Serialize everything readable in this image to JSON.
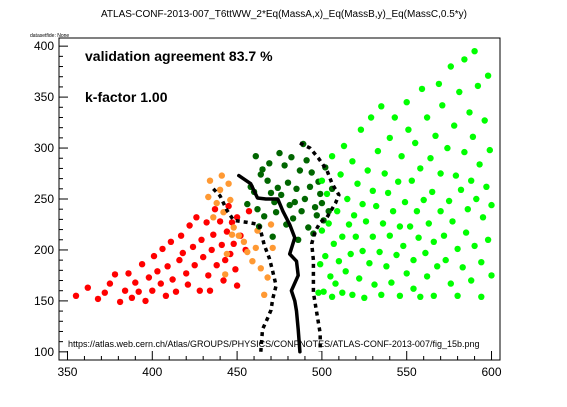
{
  "chart_data": {
    "type": "scatter",
    "title": "ATLAS-CONF-2013-007_T6ttWW_2*Eq(MassA,x)_Eq(MassB,y)_Eq(MassC,0.5*y)",
    "subtitle": "datasetfide: None",
    "xlabel": "",
    "ylabel": "",
    "xlim": [
      345,
      605
    ],
    "ylim": [
      92,
      408
    ],
    "xticks": [
      350,
      400,
      450,
      500,
      550,
      600
    ],
    "yticks": [
      100,
      150,
      200,
      250,
      300,
      350,
      400
    ],
    "grid": false,
    "legend": "none",
    "annotations": {
      "agreement": "validation agreement 83.7 %",
      "kfactor": "k-factor 1.00",
      "url": "https://atlas.web.cern.ch/Atlas/GROUPS/PHYSICS/CONFNOTES/ATLAS-CONF-2013-007/fig_15b.png"
    },
    "colors": {
      "red": "#ff0000",
      "orange": "#ff9933",
      "darkgreen": "#006600",
      "green": "#00ff00",
      "line": "#000000"
    },
    "series": [
      {
        "color": "red",
        "points": [
          [
            355,
            155
          ],
          [
            362,
            163
          ],
          [
            368,
            152
          ],
          [
            372,
            158
          ],
          [
            375,
            167
          ],
          [
            378,
            176
          ],
          [
            381,
            149
          ],
          [
            384,
            160
          ],
          [
            386,
            177
          ],
          [
            388,
            153
          ],
          [
            390,
            168
          ],
          [
            392,
            159
          ],
          [
            394,
            186
          ],
          [
            396,
            150
          ],
          [
            398,
            173
          ],
          [
            400,
            160
          ],
          [
            401,
            194
          ],
          [
            403,
            179
          ],
          [
            405,
            167
          ],
          [
            406,
            201
          ],
          [
            408,
            155
          ],
          [
            409,
            184
          ],
          [
            411,
            208
          ],
          [
            412,
            171
          ],
          [
            414,
            159
          ],
          [
            416,
            190
          ],
          [
            417,
            214
          ],
          [
            418,
            197
          ],
          [
            420,
            177
          ],
          [
            421,
            166
          ],
          [
            422,
            224
          ],
          [
            424,
            203
          ],
          [
            425,
            185
          ],
          [
            426,
            232
          ],
          [
            428,
            160
          ],
          [
            429,
            210
          ],
          [
            430,
            193
          ],
          [
            432,
            227
          ],
          [
            433,
            175
          ],
          [
            434,
            160
          ],
          [
            435,
            200
          ],
          [
            436,
            215
          ],
          [
            437,
            240
          ],
          [
            438,
            185
          ],
          [
            440,
            228
          ],
          [
            441,
            205
          ],
          [
            442,
            170
          ],
          [
            443,
            190
          ],
          [
            444,
            218
          ],
          [
            445,
            243
          ],
          [
            446,
            196
          ],
          [
            447,
            227
          ],
          [
            448,
            206
          ],
          [
            449,
            181
          ],
          [
            450,
            232
          ],
          [
            450,
            165
          ],
          [
            452,
            214
          ],
          [
            455,
            200
          ],
          [
            457,
            238
          ]
        ]
      },
      {
        "color": "orange",
        "points": [
          [
            433,
            252
          ],
          [
            434,
            268
          ],
          [
            436,
            232
          ],
          [
            438,
            246
          ],
          [
            440,
            259
          ],
          [
            441,
            273
          ],
          [
            442,
            237
          ],
          [
            443,
            176
          ],
          [
            444,
            196
          ],
          [
            445,
            265
          ],
          [
            446,
            249
          ],
          [
            447,
            215
          ],
          [
            448,
            222
          ],
          [
            451,
            214
          ],
          [
            454,
            208
          ],
          [
            456,
            198
          ],
          [
            459,
            189
          ],
          [
            461,
            202
          ],
          [
            462,
            219
          ],
          [
            464,
            182
          ],
          [
            466,
            156
          ],
          [
            468,
            173
          ],
          [
            470,
            225
          ],
          [
            471,
            202
          ]
        ]
      },
      {
        "color": "darkgreen",
        "points": [
          [
            456,
            245
          ],
          [
            458,
            262
          ],
          [
            460,
            257
          ],
          [
            461,
            292
          ],
          [
            462,
            240
          ],
          [
            463,
            223
          ],
          [
            464,
            274
          ],
          [
            465,
            279
          ],
          [
            466,
            233
          ],
          [
            468,
            268
          ],
          [
            469,
            285
          ],
          [
            470,
            256
          ],
          [
            471,
            213
          ],
          [
            472,
            247
          ],
          [
            473,
            237
          ],
          [
            474,
            261
          ],
          [
            475,
            295
          ],
          [
            476,
            254
          ],
          [
            478,
            283
          ],
          [
            479,
            225
          ],
          [
            480,
            266
          ],
          [
            481,
            244
          ],
          [
            482,
            291
          ],
          [
            483,
            231
          ],
          [
            484,
            247
          ],
          [
            485,
            260
          ],
          [
            486,
            210
          ],
          [
            487,
            278
          ],
          [
            488,
            238
          ],
          [
            489,
            304
          ],
          [
            490,
            250
          ],
          [
            491,
            288
          ],
          [
            492,
            222
          ],
          [
            493,
            262
          ],
          [
            494,
            276
          ],
          [
            495,
            216
          ],
          [
            496,
            242
          ],
          [
            497,
            234
          ],
          [
            498,
            267
          ],
          [
            499,
            255
          ],
          [
            500,
            246
          ],
          [
            501,
            229
          ],
          [
            502,
            281
          ],
          [
            504,
            238
          ],
          [
            506,
            260
          ]
        ]
      },
      {
        "color": "green",
        "points": [
          [
            498,
            158
          ],
          [
            499,
            186
          ],
          [
            500,
            219
          ],
          [
            500,
            268
          ],
          [
            501,
            159
          ],
          [
            502,
            194
          ],
          [
            503,
            255
          ],
          [
            504,
            226
          ],
          [
            505,
            174
          ],
          [
            506,
            292
          ],
          [
            506,
            154
          ],
          [
            507,
            206
          ],
          [
            508,
            167
          ],
          [
            509,
            238
          ],
          [
            510,
            189
          ],
          [
            511,
            274
          ],
          [
            512,
            213
          ],
          [
            512,
            158
          ],
          [
            513,
            302
          ],
          [
            514,
            179
          ],
          [
            515,
            250
          ],
          [
            516,
            225
          ],
          [
            517,
            196
          ],
          [
            518,
            156
          ],
          [
            518,
            287
          ],
          [
            519,
            234
          ],
          [
            520,
            213
          ],
          [
            521,
            265
          ],
          [
            522,
            172
          ],
          [
            523,
            318
          ],
          [
            524,
            199
          ],
          [
            524,
            245
          ],
          [
            525,
            153
          ],
          [
            526,
            228
          ],
          [
            527,
            278
          ],
          [
            528,
            187
          ],
          [
            529,
            330
          ],
          [
            530,
            213
          ],
          [
            530,
            258
          ],
          [
            531,
            166
          ],
          [
            532,
            243
          ],
          [
            533,
            297
          ],
          [
            534,
            198
          ],
          [
            535,
            156
          ],
          [
            535,
            341
          ],
          [
            536,
            226
          ],
          [
            537,
            275
          ],
          [
            538,
            184
          ],
          [
            539,
            256
          ],
          [
            540,
            214
          ],
          [
            540,
            310
          ],
          [
            541,
            168
          ],
          [
            542,
            238
          ],
          [
            543,
            330
          ],
          [
            544,
            195
          ],
          [
            545,
            267
          ],
          [
            546,
            155
          ],
          [
            546,
            223
          ],
          [
            547,
            292
          ],
          [
            548,
            204
          ],
          [
            549,
            247
          ],
          [
            550,
            177
          ],
          [
            550,
            345
          ],
          [
            551,
            318
          ],
          [
            552,
            223
          ],
          [
            553,
            268
          ],
          [
            554,
            162
          ],
          [
            554,
            190
          ],
          [
            555,
            305
          ],
          [
            556,
            238
          ],
          [
            557,
            212
          ],
          [
            558,
            280
          ],
          [
            558,
            154
          ],
          [
            559,
            358
          ],
          [
            560,
            249
          ],
          [
            561,
            197
          ],
          [
            562,
            330
          ],
          [
            562,
            174
          ],
          [
            563,
            226
          ],
          [
            564,
            290
          ],
          [
            565,
            257
          ],
          [
            566,
            208
          ],
          [
            566,
            155
          ],
          [
            567,
            312
          ],
          [
            568,
            184
          ],
          [
            569,
            363
          ],
          [
            570,
            238
          ],
          [
            570,
            275
          ],
          [
            571,
            342
          ],
          [
            572,
            214
          ],
          [
            573,
            190
          ],
          [
            574,
            300
          ],
          [
            575,
            248
          ],
          [
            576,
            167
          ],
          [
            576,
            380
          ],
          [
            577,
            228
          ],
          [
            578,
            322
          ],
          [
            579,
            273
          ],
          [
            580,
            201
          ],
          [
            580,
            155
          ],
          [
            581,
            355
          ],
          [
            582,
            259
          ],
          [
            583,
            183
          ],
          [
            584,
            296
          ],
          [
            584,
            387
          ],
          [
            585,
            217
          ],
          [
            586,
            240
          ],
          [
            587,
            335
          ],
          [
            588,
            170
          ],
          [
            588,
            268
          ],
          [
            589,
            311
          ],
          [
            590,
            204
          ],
          [
            590,
            395
          ],
          [
            591,
            250
          ],
          [
            592,
            361
          ],
          [
            593,
            284
          ],
          [
            594,
            188
          ],
          [
            594,
            154
          ],
          [
            595,
            232
          ],
          [
            596,
            327
          ],
          [
            597,
            262
          ],
          [
            598,
            210
          ],
          [
            598,
            371
          ],
          [
            599,
            298
          ],
          [
            600,
            244
          ],
          [
            600,
            175
          ]
        ]
      }
    ],
    "lines": [
      {
        "style": "solid",
        "points": [
          [
            451,
            273
          ],
          [
            458,
            265
          ],
          [
            462,
            251
          ],
          [
            467,
            250
          ],
          [
            474,
            250
          ],
          [
            477,
            238
          ],
          [
            481,
            225
          ],
          [
            484,
            212
          ],
          [
            481,
            196
          ],
          [
            485,
            189
          ],
          [
            486,
            175
          ],
          [
            482,
            160
          ],
          [
            484,
            150
          ],
          [
            485,
            140
          ],
          [
            486,
            122
          ],
          [
            487,
            100
          ]
        ]
      },
      {
        "style": "dotted",
        "points": [
          [
            436,
            260
          ],
          [
            440,
            253
          ],
          [
            444,
            239
          ],
          [
            448,
            229
          ],
          [
            456,
            227
          ],
          [
            463,
            225
          ],
          [
            466,
            205
          ],
          [
            469,
            192
          ],
          [
            471,
            179
          ],
          [
            473,
            165
          ],
          [
            471,
            152
          ],
          [
            470,
            141
          ],
          [
            468,
            133
          ],
          [
            465,
            122
          ],
          [
            464,
            100
          ]
        ]
      },
      {
        "style": "dotted",
        "points": [
          [
            487,
            305
          ],
          [
            493,
            300
          ],
          [
            498,
            290
          ],
          [
            503,
            278
          ],
          [
            506,
            265
          ],
          [
            510,
            254
          ],
          [
            508,
            246
          ],
          [
            503,
            232
          ],
          [
            499,
            227
          ],
          [
            496,
            218
          ],
          [
            494,
            206
          ],
          [
            495,
            190
          ],
          [
            495,
            175
          ],
          [
            495,
            158
          ],
          [
            497,
            138
          ],
          [
            499,
            118
          ],
          [
            499,
            100
          ]
        ]
      }
    ]
  }
}
